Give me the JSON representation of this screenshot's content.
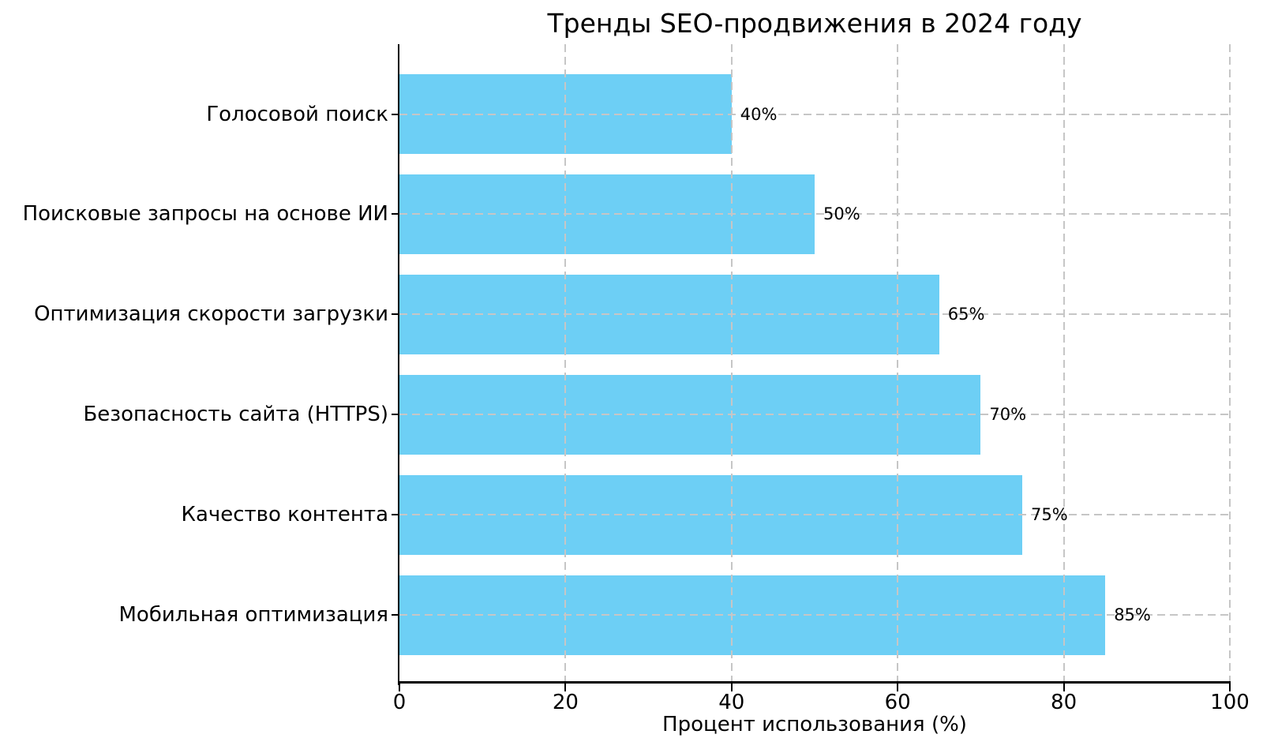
{
  "chart_data": {
    "type": "bar",
    "orientation": "horizontal",
    "title": "Тренды SEO-продвижения в 2024 году",
    "xlabel": "Процент использования (%)",
    "ylabel": "",
    "categories": [
      "Голосовой поиск",
      "Поисковые запросы на основе ИИ",
      "Оптимизация скорости загрузки",
      "Безопасность сайта (HTTPS)",
      "Качество контента",
      "Мобильная оптимизация"
    ],
    "values": [
      40,
      50,
      65,
      70,
      75,
      85
    ],
    "value_labels": [
      "40%",
      "50%",
      "65%",
      "70%",
      "75%",
      "85%"
    ],
    "xlim": [
      0,
      100
    ],
    "xticks": [
      0,
      20,
      40,
      60,
      80,
      100
    ],
    "grid": "dashed, both axes, drawn over bars",
    "legend": "none",
    "colors": {
      "bar": "#6dcff5",
      "grid": "#c6c6c6",
      "axis": "#000000",
      "text": "#000000",
      "background": "#ffffff"
    }
  }
}
